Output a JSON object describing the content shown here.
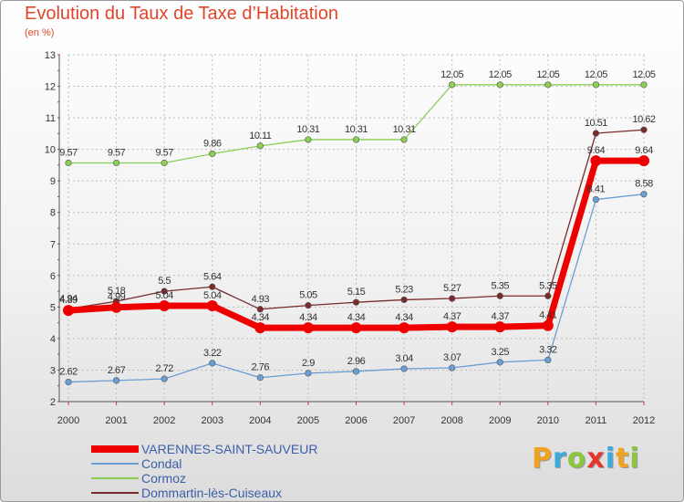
{
  "title": "Evolution du Taux de Taxe d’Habitation",
  "subtitle": "(en %)",
  "logo": {
    "letters": [
      "P",
      "r",
      "o",
      "x",
      "i",
      "t",
      "i"
    ],
    "colors": [
      "#f0a320",
      "#3aa9dc",
      "#8cc63f",
      "#e8352b",
      "#3aa9dc",
      "#f0a320",
      "#8cc63f"
    ]
  },
  "chart_data": {
    "type": "line",
    "x": [
      "2000",
      "2001",
      "2002",
      "2003",
      "2004",
      "2005",
      "2006",
      "2007",
      "2008",
      "2009",
      "2010",
      "2011",
      "2012"
    ],
    "ylim": [
      2,
      13
    ],
    "yticks": [
      "2",
      "3",
      "4",
      "5",
      "6",
      "7",
      "8",
      "9",
      "10",
      "11",
      "12",
      "13"
    ],
    "grid": true,
    "legend_position": "bottom-left",
    "series": [
      {
        "name": "Cormoz",
        "color": "#8ccf55",
        "values": [
          9.57,
          9.57,
          9.57,
          9.86,
          10.11,
          10.31,
          10.31,
          10.31,
          12.05,
          12.05,
          12.05,
          12.05,
          12.05
        ],
        "labels": [
          "9.57",
          "9.57",
          "9.57",
          "9.86",
          "10.11",
          "10.31",
          "10.31",
          "10.31",
          "12.05",
          "12.05",
          "12.05",
          "12.05",
          "12.05"
        ]
      },
      {
        "name": "Condal",
        "color": "#6a9fd4",
        "values": [
          2.62,
          2.67,
          2.72,
          3.22,
          2.76,
          2.9,
          2.96,
          3.04,
          3.07,
          3.25,
          3.32,
          8.41,
          8.58
        ],
        "labels": [
          "2.62",
          "2.67",
          "2.72",
          "3.22",
          "2.76",
          "2.9",
          "2.96",
          "3.04",
          "3.07",
          "3.25",
          "3.32",
          "8.41",
          "8.58"
        ]
      },
      {
        "name": "Dommartin-lès-Cuiseaux",
        "color": "#7a2a2a",
        "values": [
          4.94,
          5.18,
          5.5,
          5.64,
          4.93,
          5.05,
          5.15,
          5.23,
          5.27,
          5.35,
          5.35,
          10.51,
          10.62
        ],
        "labels": [
          "4.94",
          "5.18",
          "5.5",
          "5.64",
          "4.93",
          "5.05",
          "5.15",
          "5.23",
          "5.27",
          "5.35",
          "5.35",
          "10.51",
          "10.62"
        ]
      },
      {
        "name": "VARENNES-SAINT-SAUVEUR",
        "color": "#ee0000",
        "values": [
          4.89,
          4.99,
          5.04,
          5.04,
          4.34,
          4.34,
          4.34,
          4.34,
          4.37,
          4.37,
          4.41,
          9.64,
          9.64
        ],
        "labels": [
          "4.89",
          "4.99",
          "5.04",
          "5.04",
          "4.34",
          "4.34",
          "4.34",
          "4.34",
          "4.37",
          "4.37",
          "4.41",
          "9.64",
          "9.64"
        ]
      }
    ],
    "legend": [
      {
        "name": "VARENNES-SAINT-SAUVEUR",
        "color": "#ee0000",
        "thickness": "thick"
      },
      {
        "name": "Condal",
        "color": "#6a9fd4",
        "thickness": "thin"
      },
      {
        "name": "Cormoz",
        "color": "#8ccf55",
        "thickness": "thin"
      },
      {
        "name": "Dommartin-lès-Cuiseaux",
        "color": "#7a2a2a",
        "thickness": "thin"
      }
    ]
  }
}
